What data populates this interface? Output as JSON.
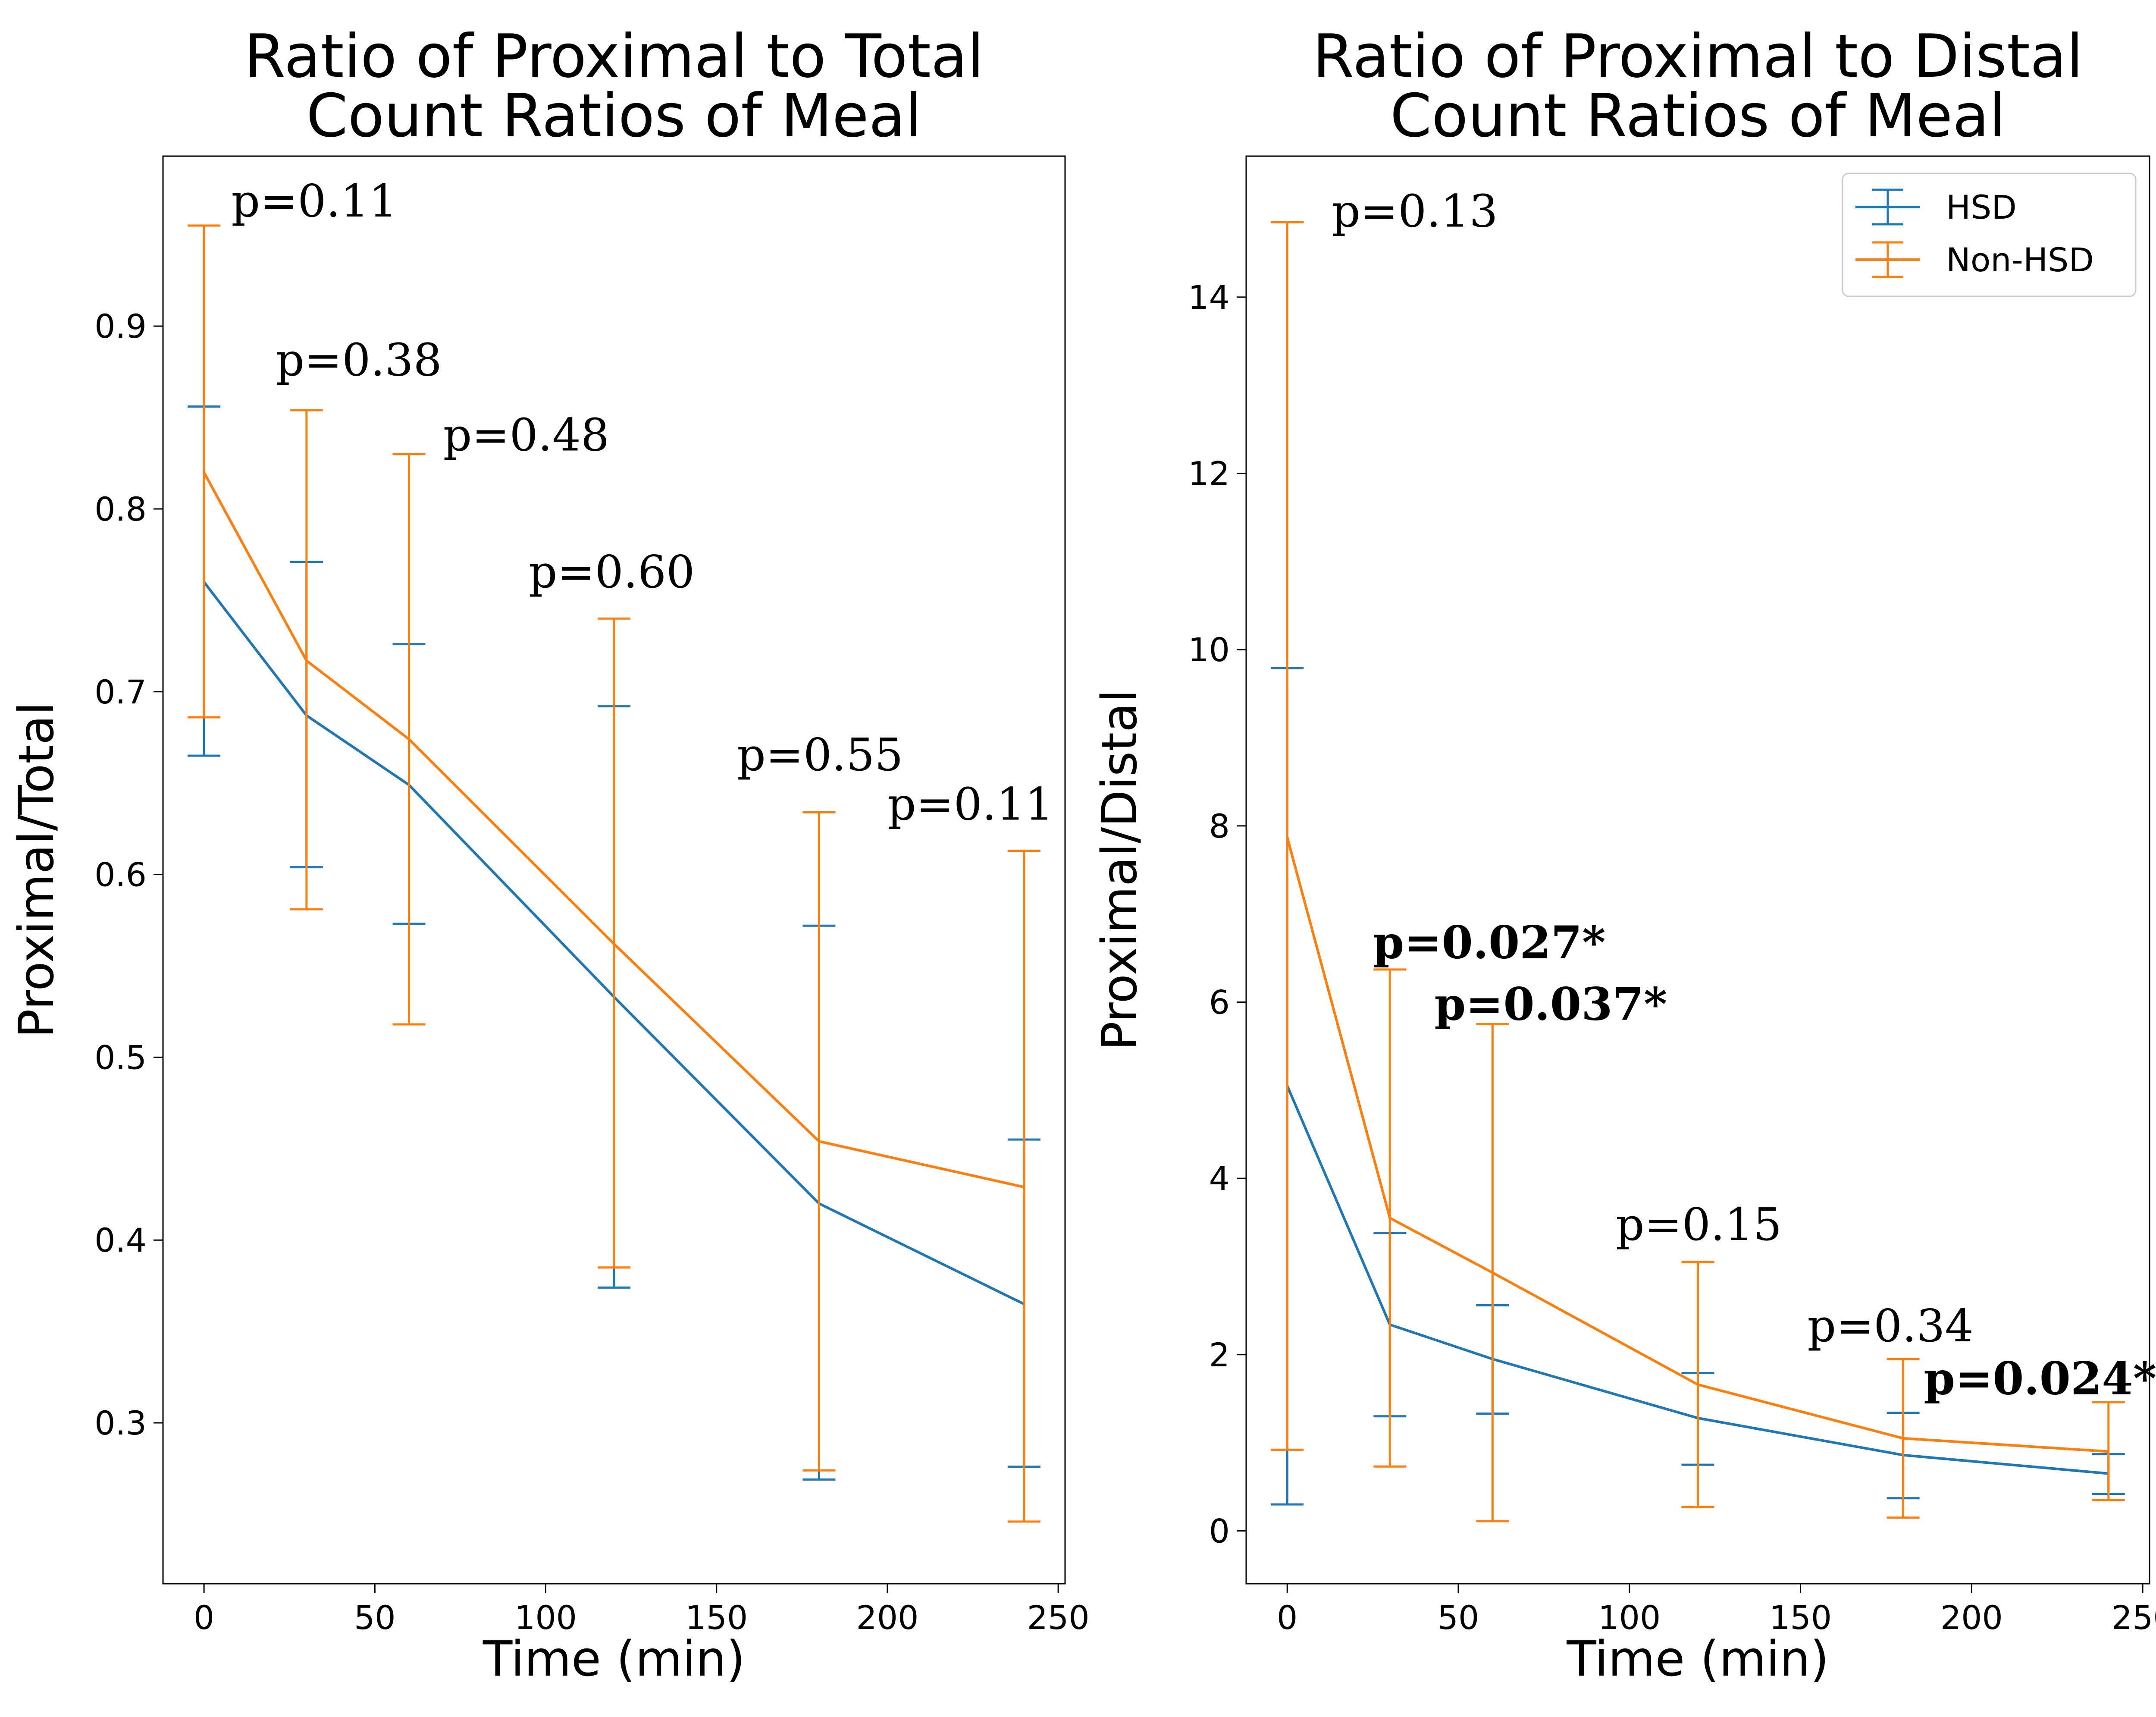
{
  "chart_data": [
    {
      "type": "line",
      "title": [
        "Ratio of Proximal to Total",
        "Count Ratios of Meal"
      ],
      "xlabel": "Time (min)",
      "ylabel": "Proximal/Total",
      "xlim": [
        -12,
        252
      ],
      "ylim": [
        0.212,
        0.993
      ],
      "xticks": [
        0,
        50,
        100,
        150,
        200,
        250
      ],
      "yticks": [
        0.3,
        0.4,
        0.5,
        0.6,
        0.7,
        0.8,
        0.9
      ],
      "x": [
        0,
        30,
        60,
        120,
        180,
        240
      ],
      "series": [
        {
          "name": "HSD",
          "color": "#1f77b4",
          "values": [
            0.76,
            0.687,
            0.649,
            0.533,
            0.42,
            0.365
          ],
          "err_low": [
            0.665,
            0.604,
            0.573,
            0.374,
            0.269,
            0.276
          ],
          "err_high": [
            0.856,
            0.771,
            0.726,
            0.692,
            0.572,
            0.455
          ]
        },
        {
          "name": "Non-HSD",
          "color": "#ff7f0e",
          "values": [
            0.82,
            0.717,
            0.674,
            0.562,
            0.454,
            0.429
          ],
          "err_low": [
            0.686,
            0.581,
            0.518,
            0.385,
            0.274,
            0.246
          ],
          "err_high": [
            0.955,
            0.854,
            0.83,
            0.74,
            0.634,
            0.613
          ]
        }
      ],
      "annotations": [
        {
          "text": "p=0.11",
          "x": 8,
          "y": 0.96,
          "bold": false
        },
        {
          "text": "p=0.38",
          "x": 21,
          "y": 0.873,
          "bold": false
        },
        {
          "text": "p=0.48",
          "x": 70,
          "y": 0.832,
          "bold": false
        },
        {
          "text": "p=0.60",
          "x": 95,
          "y": 0.757,
          "bold": false
        },
        {
          "text": "p=0.55",
          "x": 156,
          "y": 0.657,
          "bold": false
        },
        {
          "text": "p=0.11",
          "x": 200,
          "y": 0.63,
          "bold": false
        }
      ]
    },
    {
      "type": "line",
      "title": [
        "Ratio of Proximal to Distal",
        "Count Ratios of Meal"
      ],
      "xlabel": "Time (min)",
      "ylabel": "Proximal/Distal",
      "xlim": [
        -12,
        252
      ],
      "ylim": [
        -0.6,
        15.6
      ],
      "xticks": [
        0,
        50,
        100,
        150,
        200,
        250
      ],
      "yticks": [
        0,
        2,
        4,
        6,
        8,
        10,
        12,
        14
      ],
      "x": [
        0,
        30,
        60,
        120,
        180,
        240
      ],
      "legend": "top-right",
      "series": [
        {
          "name": "HSD",
          "color": "#1f77b4",
          "values": [
            5.05,
            2.34,
            1.95,
            1.28,
            0.86,
            0.65
          ],
          "err_low": [
            0.3,
            1.3,
            1.33,
            0.75,
            0.37,
            0.42
          ],
          "err_high": [
            9.79,
            3.38,
            2.56,
            1.79,
            1.34,
            0.87
          ]
        },
        {
          "name": "Non-HSD",
          "color": "#ff7f0e",
          "values": [
            7.87,
            3.55,
            2.93,
            1.66,
            1.05,
            0.9
          ],
          "err_low": [
            0.92,
            0.73,
            0.11,
            0.27,
            0.15,
            0.35
          ],
          "err_high": [
            14.85,
            6.37,
            5.75,
            3.05,
            1.95,
            1.46
          ]
        }
      ],
      "annotations": [
        {
          "text": "p=0.13",
          "x": 13,
          "y": 14.8,
          "bold": false
        },
        {
          "text": "p=0.027*",
          "x": 25,
          "y": 6.5,
          "bold": true
        },
        {
          "text": "p=0.037*",
          "x": 43,
          "y": 5.8,
          "bold": true
        },
        {
          "text": "p=0.15",
          "x": 96,
          "y": 3.3,
          "bold": false
        },
        {
          "text": "p=0.34",
          "x": 152,
          "y": 2.15,
          "bold": false
        },
        {
          "text": "p=0.024*",
          "x": 186,
          "y": 1.55,
          "bold": true
        }
      ]
    }
  ]
}
